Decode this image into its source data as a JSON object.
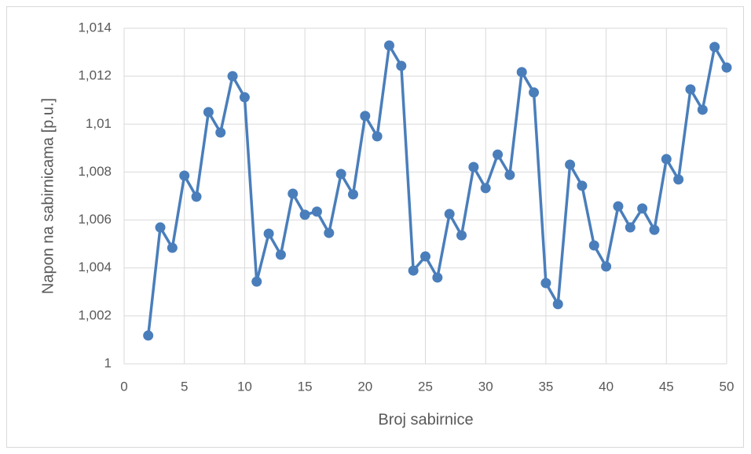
{
  "chart_data": {
    "type": "line",
    "xlabel": "Broj sabirnice",
    "ylabel": "Napon na sabirnicama [p.u.]",
    "x": [
      2,
      3,
      4,
      5,
      6,
      7,
      8,
      9,
      10,
      11,
      12,
      13,
      14,
      15,
      16,
      17,
      18,
      19,
      20,
      21,
      22,
      23,
      24,
      25,
      26,
      27,
      28,
      29,
      30,
      31,
      32,
      33,
      34,
      35,
      36,
      37,
      38,
      39,
      40,
      41,
      42,
      43,
      44,
      45,
      46,
      47,
      48,
      49,
      50
    ],
    "series": [
      {
        "name": "Napon",
        "color": "#4a7ebb",
        "values": [
          1.00118,
          1.00569,
          1.00484,
          1.00785,
          1.00697,
          1.0105,
          1.00965,
          1.012,
          1.01112,
          1.00343,
          1.00543,
          1.00455,
          1.0071,
          1.00622,
          1.00635,
          1.00546,
          1.00792,
          1.00707,
          1.01034,
          1.00949,
          1.01328,
          1.01243,
          1.00389,
          1.00448,
          1.0036,
          1.00625,
          1.00536,
          1.00821,
          1.00733,
          1.00873,
          1.00788,
          1.01217,
          1.01132,
          1.00337,
          1.00249,
          1.00831,
          1.00743,
          1.00494,
          1.00406,
          1.00657,
          1.00569,
          1.00648,
          1.00559,
          1.00854,
          1.00769,
          1.01145,
          1.0106,
          1.01322,
          1.01236
        ]
      }
    ],
    "xlim": [
      0,
      50
    ],
    "xticks": [
      0,
      5,
      10,
      15,
      20,
      25,
      30,
      35,
      40,
      45,
      50
    ],
    "ylim": [
      1,
      1.014
    ],
    "yticks": [
      1,
      {
        "value": 1.002,
        "label": "1,002"
      },
      {
        "value": 1.004,
        "label": "1,004"
      },
      {
        "value": 1.006,
        "label": "1,006"
      },
      {
        "value": 1.008,
        "label": "1,008"
      },
      {
        "value": 1.01,
        "label": "1,01"
      },
      {
        "value": 1.012,
        "label": "1,012"
      },
      {
        "value": 1.014,
        "label": "1,014"
      }
    ],
    "grid": true
  }
}
